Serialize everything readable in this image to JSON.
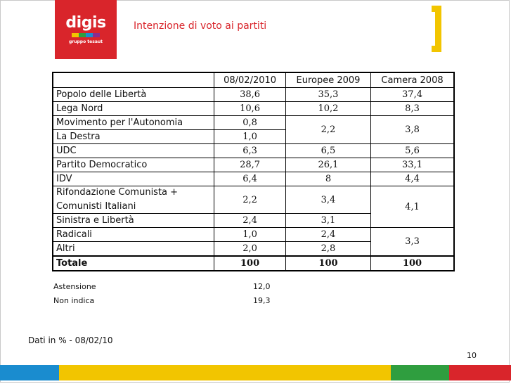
{
  "header": {
    "logo_text": "digis",
    "logo_sub": "gruppo tesaut",
    "title": "Intenzione di voto ai partiti"
  },
  "colors": {
    "brand_red": "#d9252b",
    "accent_yellow": "#f2c500",
    "bar_blue": "#1a8ccf",
    "bar_green": "#2f9e3f",
    "bar_yellow": "#f2c500",
    "bar_red": "#d9252b"
  },
  "table": {
    "columns": [
      "08/02/2010",
      "Europee 2009",
      "Camera 2008"
    ],
    "parties": [
      "Popolo delle Libertà",
      "Lega Nord",
      "Movimento per l'Autonomia",
      "La Destra",
      "UDC",
      "Partito Democratico",
      "IDV",
      "Rifondazione Comunista +",
      "Comunisti Italiani",
      "Sinistra e Libertà",
      "Radicali",
      "Altri"
    ],
    "col1": [
      "38,6",
      "10,6",
      "0,8",
      "1,0",
      "6,3",
      "28,7",
      "6,4",
      "2,2",
      "2,4",
      "1,0",
      "2,0"
    ],
    "col2": [
      "35,3",
      "10,2",
      "2,2",
      "6,5",
      "26,1",
      "8",
      "3,4",
      "3,1",
      "2,4",
      "2,8"
    ],
    "col3": [
      "37,4",
      "8,3",
      "3,8",
      "5,6",
      "33,1",
      "4,4",
      "4,1",
      "3,3"
    ],
    "total": {
      "label": "Totale",
      "values": [
        "100",
        "100",
        "100"
      ]
    }
  },
  "extra": {
    "astensione_label": "Astensione",
    "astensione_value": "12,0",
    "nonindica_label": "Non indica",
    "nonindica_value": "19,3"
  },
  "footer": {
    "note": "Dati in % - 08/02/10",
    "page": "10"
  }
}
